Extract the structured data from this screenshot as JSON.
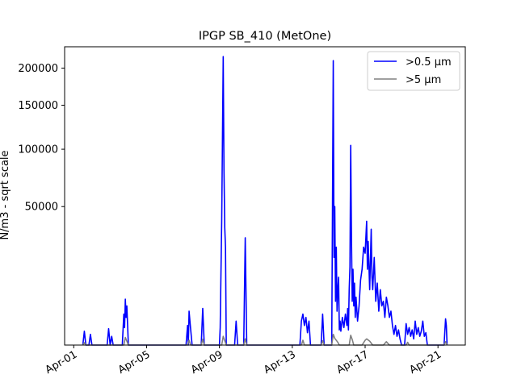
{
  "chart_data": {
    "type": "line",
    "title": "IPGP SB_410 (MetOne)",
    "xlabel": "",
    "ylabel": "N/m3 - sqrt scale",
    "y_scale": "sqrt",
    "xlim": [
      "2024-03-31T12:00",
      "2024-04-22T12:00"
    ],
    "ylim": [
      0,
      232000
    ],
    "x_ticks": [
      {
        "date": "2024-04-01",
        "label": "Apr-01"
      },
      {
        "date": "2024-04-05",
        "label": "Apr-05"
      },
      {
        "date": "2024-04-09",
        "label": "Apr-09"
      },
      {
        "date": "2024-04-13",
        "label": "Apr-13"
      },
      {
        "date": "2024-04-17",
        "label": "Apr-17"
      },
      {
        "date": "2024-04-21",
        "label": "Apr-21"
      }
    ],
    "y_ticks": [
      {
        "value": 50000,
        "label": "50000"
      },
      {
        "value": 100000,
        "label": "100000"
      },
      {
        "value": 150000,
        "label": "150000"
      },
      {
        "value": 200000,
        "label": "200000"
      }
    ],
    "grid": false,
    "legend_position": "top-right",
    "series": [
      {
        "name": ">0.5 µm",
        "color": "#0000ff",
        "points": [
          [
            "2024-04-01T12:00",
            0
          ],
          [
            "2024-04-01T14:00",
            500
          ],
          [
            "2024-04-01T16:00",
            0
          ],
          [
            "2024-04-01T20:00",
            0
          ],
          [
            "2024-04-01T22:00",
            300
          ],
          [
            "2024-04-02T00:00",
            0
          ],
          [
            "2024-04-02T20:00",
            0
          ],
          [
            "2024-04-02T22:00",
            700
          ],
          [
            "2024-04-03T00:00",
            0
          ],
          [
            "2024-04-03T02:00",
            200
          ],
          [
            "2024-04-03T04:00",
            0
          ],
          [
            "2024-04-03T16:00",
            0
          ],
          [
            "2024-04-03T18:00",
            2500
          ],
          [
            "2024-04-03T19:00",
            800
          ],
          [
            "2024-04-03T20:00",
            5500
          ],
          [
            "2024-04-03T21:00",
            2000
          ],
          [
            "2024-04-03T22:00",
            4000
          ],
          [
            "2024-04-04T00:00",
            0
          ],
          [
            "2024-04-07T04:00",
            0
          ],
          [
            "2024-04-07T06:00",
            1000
          ],
          [
            "2024-04-07T07:00",
            0
          ],
          [
            "2024-04-07T08:00",
            3000
          ],
          [
            "2024-04-07T10:00",
            700
          ],
          [
            "2024-04-07T12:00",
            0
          ],
          [
            "2024-04-08T00:00",
            0
          ],
          [
            "2024-04-08T02:00",
            3500
          ],
          [
            "2024-04-08T04:00",
            0
          ],
          [
            "2024-04-09T00:00",
            0
          ],
          [
            "2024-04-09T01:00",
            800
          ],
          [
            "2024-04-09T03:00",
            40000
          ],
          [
            "2024-04-09T05:00",
            217000
          ],
          [
            "2024-04-09T06:00",
            80000
          ],
          [
            "2024-04-09T07:00",
            36000
          ],
          [
            "2024-04-09T08:00",
            25000
          ],
          [
            "2024-04-09T09:00",
            0
          ],
          [
            "2024-04-09T20:00",
            0
          ],
          [
            "2024-04-09T22:00",
            1500
          ],
          [
            "2024-04-10T00:00",
            0
          ],
          [
            "2024-04-10T08:00",
            0
          ],
          [
            "2024-04-10T10:00",
            30000
          ],
          [
            "2024-04-10T12:00",
            0
          ],
          [
            "2024-04-13T10:00",
            0
          ],
          [
            "2024-04-13T12:00",
            1500
          ],
          [
            "2024-04-13T14:00",
            2500
          ],
          [
            "2024-04-13T16:00",
            1000
          ],
          [
            "2024-04-13T18:00",
            2000
          ],
          [
            "2024-04-13T20:00",
            400
          ],
          [
            "2024-04-13T22:00",
            1500
          ],
          [
            "2024-04-14T00:00",
            0
          ],
          [
            "2024-04-14T14:00",
            0
          ],
          [
            "2024-04-14T16:00",
            2500
          ],
          [
            "2024-04-14T18:00",
            0
          ],
          [
            "2024-04-15T04:00",
            0
          ],
          [
            "2024-04-15T06:00",
            211000
          ],
          [
            "2024-04-15T07:00",
            20000
          ],
          [
            "2024-04-15T08:00",
            50000
          ],
          [
            "2024-04-15T09:00",
            5000
          ],
          [
            "2024-04-15T10:00",
            25000
          ],
          [
            "2024-04-15T11:00",
            3000
          ],
          [
            "2024-04-15T12:00",
            8000
          ],
          [
            "2024-04-15T13:00",
            12000
          ],
          [
            "2024-04-15T14:00",
            600
          ],
          [
            "2024-04-15T15:00",
            1500
          ],
          [
            "2024-04-15T16:00",
            500
          ],
          [
            "2024-04-15T18:00",
            2000
          ],
          [
            "2024-04-15T20:00",
            800
          ],
          [
            "2024-04-15T22:00",
            2500
          ],
          [
            "2024-04-16T00:00",
            1000
          ],
          [
            "2024-04-16T01:00",
            3500
          ],
          [
            "2024-04-16T02:00",
            600
          ],
          [
            "2024-04-16T03:00",
            8000
          ],
          [
            "2024-04-16T04:00",
            16000
          ],
          [
            "2024-04-16T05:00",
            104000
          ],
          [
            "2024-04-16T06:00",
            30000
          ],
          [
            "2024-04-16T07:00",
            5000
          ],
          [
            "2024-04-16T08:00",
            15000
          ],
          [
            "2024-04-16T09:00",
            4000
          ],
          [
            "2024-04-16T10:00",
            10000
          ],
          [
            "2024-04-16T11:00",
            2000
          ],
          [
            "2024-04-16T12:00",
            6000
          ],
          [
            "2024-04-16T14:00",
            1500
          ],
          [
            "2024-04-16T16:00",
            4000
          ],
          [
            "2024-04-16T18:00",
            11000
          ],
          [
            "2024-04-16T20:00",
            15000
          ],
          [
            "2024-04-16T22:00",
            25000
          ],
          [
            "2024-04-17T00:00",
            22000
          ],
          [
            "2024-04-17T02:00",
            40000
          ],
          [
            "2024-04-17T03:00",
            15000
          ],
          [
            "2024-04-17T04:00",
            28000
          ],
          [
            "2024-04-17T06:00",
            8000
          ],
          [
            "2024-04-17T08:00",
            35000
          ],
          [
            "2024-04-17T09:00",
            12000
          ],
          [
            "2024-04-17T10:00",
            8000
          ],
          [
            "2024-04-17T12:00",
            20000
          ],
          [
            "2024-04-17T14:00",
            5000
          ],
          [
            "2024-04-17T16:00",
            10000
          ],
          [
            "2024-04-17T18:00",
            3000
          ],
          [
            "2024-04-17T20:00",
            8000
          ],
          [
            "2024-04-17T22:00",
            4000
          ],
          [
            "2024-04-18T00:00",
            5000
          ],
          [
            "2024-04-18T02:00",
            2000
          ],
          [
            "2024-04-18T04:00",
            6000
          ],
          [
            "2024-04-18T06:00",
            4000
          ],
          [
            "2024-04-18T08:00",
            2000
          ],
          [
            "2024-04-18T10:00",
            3000
          ],
          [
            "2024-04-18T12:00",
            1000
          ],
          [
            "2024-04-18T14:00",
            300
          ],
          [
            "2024-04-18T16:00",
            1000
          ],
          [
            "2024-04-18T18:00",
            200
          ],
          [
            "2024-04-18T20:00",
            600
          ],
          [
            "2024-04-18T22:00",
            100
          ],
          [
            "2024-04-19T00:00",
            0
          ],
          [
            "2024-04-19T04:00",
            0
          ],
          [
            "2024-04-19T06:00",
            1200
          ],
          [
            "2024-04-19T08:00",
            300
          ],
          [
            "2024-04-19T10:00",
            800
          ],
          [
            "2024-04-19T12:00",
            200
          ],
          [
            "2024-04-19T14:00",
            600
          ],
          [
            "2024-04-19T16:00",
            100
          ],
          [
            "2024-04-19T18:00",
            1500
          ],
          [
            "2024-04-19T20:00",
            300
          ],
          [
            "2024-04-19T22:00",
            800
          ],
          [
            "2024-04-20T00:00",
            200
          ],
          [
            "2024-04-20T02:00",
            500
          ],
          [
            "2024-04-20T04:00",
            1500
          ],
          [
            "2024-04-20T06:00",
            200
          ],
          [
            "2024-04-20T08:00",
            400
          ],
          [
            "2024-04-20T10:00",
            0
          ],
          [
            "2024-04-21T08:00",
            0
          ],
          [
            "2024-04-21T10:00",
            1800
          ],
          [
            "2024-04-21T11:00",
            1000
          ],
          [
            "2024-04-21T12:00",
            0
          ]
        ]
      },
      {
        "name": ">5 µm",
        "color": "#808080",
        "points": [
          [
            "2024-04-01T12:00",
            0
          ],
          [
            "2024-04-01T14:00",
            15
          ],
          [
            "2024-04-01T16:00",
            0
          ],
          [
            "2024-04-03T18:00",
            0
          ],
          [
            "2024-04-03T20:00",
            150
          ],
          [
            "2024-04-03T22:00",
            40
          ],
          [
            "2024-04-04T00:00",
            0
          ],
          [
            "2024-04-07T06:00",
            0
          ],
          [
            "2024-04-07T08:00",
            60
          ],
          [
            "2024-04-07T10:00",
            0
          ],
          [
            "2024-04-08T00:00",
            0
          ],
          [
            "2024-04-08T02:00",
            90
          ],
          [
            "2024-04-08T04:00",
            0
          ],
          [
            "2024-04-09T03:00",
            0
          ],
          [
            "2024-04-09T05:00",
            200
          ],
          [
            "2024-04-09T07:00",
            50
          ],
          [
            "2024-04-09T09:00",
            0
          ],
          [
            "2024-04-10T08:00",
            0
          ],
          [
            "2024-04-10T10:00",
            100
          ],
          [
            "2024-04-10T12:00",
            0
          ],
          [
            "2024-04-13T12:00",
            0
          ],
          [
            "2024-04-13T14:00",
            60
          ],
          [
            "2024-04-13T16:00",
            0
          ],
          [
            "2024-04-14T14:00",
            0
          ],
          [
            "2024-04-14T16:00",
            50
          ],
          [
            "2024-04-14T18:00",
            0
          ],
          [
            "2024-04-15T04:00",
            0
          ],
          [
            "2024-04-15T06:00",
            300
          ],
          [
            "2024-04-15T08:00",
            120
          ],
          [
            "2024-04-15T10:00",
            60
          ],
          [
            "2024-04-15T12:00",
            20
          ],
          [
            "2024-04-15T14:00",
            0
          ],
          [
            "2024-04-16T03:00",
            0
          ],
          [
            "2024-04-16T05:00",
            250
          ],
          [
            "2024-04-16T07:00",
            80
          ],
          [
            "2024-04-16T09:00",
            0
          ],
          [
            "2024-04-16T20:00",
            0
          ],
          [
            "2024-04-17T00:00",
            60
          ],
          [
            "2024-04-17T02:00",
            100
          ],
          [
            "2024-04-17T06:00",
            40
          ],
          [
            "2024-04-17T10:00",
            0
          ],
          [
            "2024-04-18T00:00",
            0
          ],
          [
            "2024-04-18T04:00",
            30
          ],
          [
            "2024-04-18T08:00",
            0
          ],
          [
            "2024-04-19T06:00",
            0
          ],
          [
            "2024-04-19T08:00",
            20
          ],
          [
            "2024-04-19T10:00",
            0
          ],
          [
            "2024-04-21T08:00",
            0
          ],
          [
            "2024-04-21T10:00",
            30
          ],
          [
            "2024-04-21T12:00",
            0
          ]
        ]
      }
    ]
  }
}
